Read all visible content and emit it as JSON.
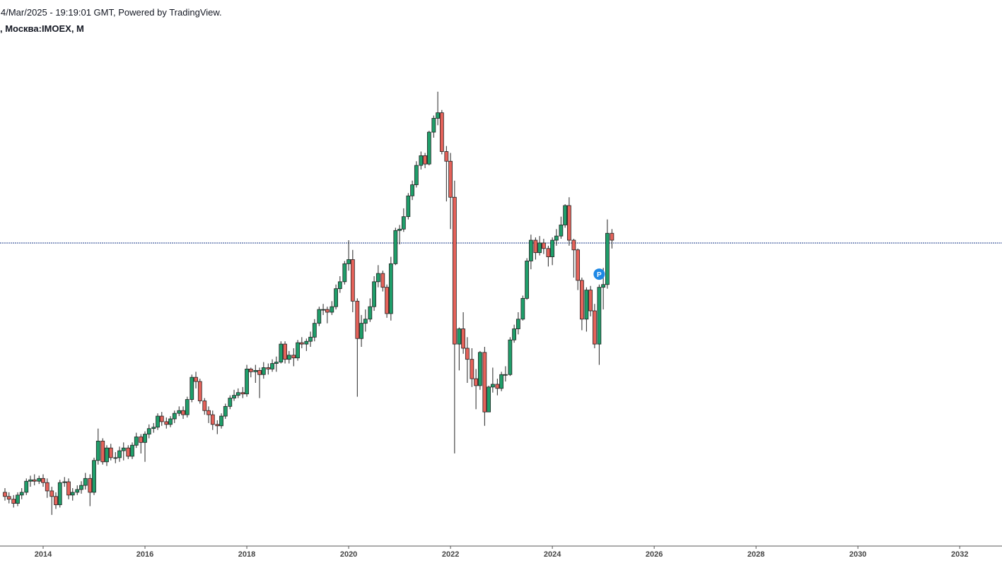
{
  "chart_data": {
    "type": "candlestick",
    "title": "4/Mar/2025 - 19:19:01 GMT, Powered by TradingView.",
    "subtitle": ", Москва:IMOEX, M",
    "x": [
      2013.25,
      2013.33,
      2013.42,
      2013.5,
      2013.58,
      2013.67,
      2013.75,
      2013.83,
      2013.92,
      2014.0,
      2014.08,
      2014.17,
      2014.25,
      2014.33,
      2014.42,
      2014.5,
      2014.58,
      2014.67,
      2014.75,
      2014.83,
      2014.92,
      2015.0,
      2015.08,
      2015.17,
      2015.25,
      2015.33,
      2015.42,
      2015.5,
      2015.58,
      2015.67,
      2015.75,
      2015.83,
      2015.92,
      2016.0,
      2016.08,
      2016.17,
      2016.25,
      2016.33,
      2016.42,
      2016.5,
      2016.58,
      2016.67,
      2016.75,
      2016.83,
      2016.92,
      2017.0,
      2017.08,
      2017.17,
      2017.25,
      2017.33,
      2017.42,
      2017.5,
      2017.58,
      2017.67,
      2017.75,
      2017.83,
      2017.92,
      2018.0,
      2018.08,
      2018.17,
      2018.25,
      2018.33,
      2018.42,
      2018.5,
      2018.58,
      2018.67,
      2018.75,
      2018.83,
      2018.92,
      2019.0,
      2019.08,
      2019.17,
      2019.25,
      2019.33,
      2019.42,
      2019.5,
      2019.58,
      2019.67,
      2019.75,
      2019.83,
      2019.92,
      2020.0,
      2020.08,
      2020.17,
      2020.25,
      2020.33,
      2020.42,
      2020.5,
      2020.58,
      2020.67,
      2020.75,
      2020.83,
      2020.92,
      2021.0,
      2021.08,
      2021.17,
      2021.25,
      2021.33,
      2021.42,
      2021.5,
      2021.58,
      2021.67,
      2021.75,
      2021.83,
      2021.92,
      2022.0,
      2022.08,
      2022.17,
      2022.25,
      2022.33,
      2022.42,
      2022.5,
      2022.58,
      2022.67,
      2022.75,
      2022.83,
      2022.92,
      2023.0,
      2023.08,
      2023.17,
      2023.25,
      2023.33,
      2023.42,
      2023.5,
      2023.58,
      2023.67,
      2023.75,
      2023.83,
      2023.92,
      2024.0,
      2024.08,
      2024.17,
      2024.25,
      2024.33,
      2024.42,
      2024.5,
      2024.58,
      2024.67,
      2024.75,
      2024.83,
      2024.92,
      2025.0,
      2025.08,
      2025.17
    ],
    "open": [
      1400,
      1370,
      1350,
      1320,
      1380,
      1400,
      1480,
      1490,
      1480,
      1500,
      1470,
      1410,
      1370,
      1310,
      1470,
      1476,
      1380,
      1400,
      1420,
      1450,
      1500,
      1400,
      1630,
      1770,
      1620,
      1720,
      1650,
      1650,
      1700,
      1720,
      1660,
      1740,
      1800,
      1760,
      1820,
      1860,
      1870,
      1950,
      1910,
      1890,
      1930,
      1970,
      1990,
      1960,
      2070,
      2230,
      2200,
      2060,
      1990,
      1960,
      1890,
      1880,
      1950,
      2020,
      2080,
      2100,
      2120,
      2110,
      2290,
      2270,
      2280,
      2250,
      2300,
      2290,
      2330,
      2340,
      2470,
      2360,
      2390,
      2370,
      2480,
      2470,
      2490,
      2520,
      2620,
      2720,
      2720,
      2700,
      2740,
      2870,
      2920,
      3050,
      3080,
      2780,
      2510,
      2620,
      2650,
      2740,
      2920,
      2980,
      2880,
      2690,
      3050,
      3290,
      3300,
      3390,
      3540,
      3620,
      3760,
      3830,
      3770,
      4000,
      4100,
      4140,
      3860,
      3790,
      3530,
      2470,
      2580,
      2440,
      2360,
      2220,
      2170,
      2410,
      1980,
      2160,
      2180,
      2150,
      2250,
      2250,
      2500,
      2580,
      2650,
      2800,
      3070,
      3220,
      3130,
      3200,
      3160,
      3100,
      3220,
      3250,
      3330,
      3470,
      3220,
      3150,
      2930,
      2650,
      2860,
      2710,
      2470,
      2880,
      2900,
      3270
    ],
    "high": [
      1430,
      1400,
      1380,
      1400,
      1430,
      1500,
      1520,
      1530,
      1520,
      1530,
      1500,
      1440,
      1400,
      1490,
      1510,
      1500,
      1430,
      1450,
      1480,
      1540,
      1530,
      1650,
      1860,
      1790,
      1740,
      1750,
      1690,
      1730,
      1760,
      1740,
      1760,
      1830,
      1820,
      1840,
      1890,
      1900,
      1970,
      1980,
      1940,
      1950,
      1990,
      2020,
      2020,
      2090,
      2250,
      2270,
      2220,
      2080,
      2020,
      1990,
      1920,
      1970,
      2040,
      2100,
      2140,
      2150,
      2160,
      2320,
      2300,
      2320,
      2300,
      2340,
      2330,
      2360,
      2380,
      2490,
      2490,
      2420,
      2440,
      2500,
      2520,
      2510,
      2560,
      2650,
      2740,
      2760,
      2740,
      2780,
      2900,
      2960,
      3070,
      3220,
      3150,
      2800,
      2680,
      2720,
      2800,
      2960,
      3040,
      3000,
      2900,
      3100,
      3310,
      3330,
      3450,
      3560,
      3650,
      3790,
      3860,
      3850,
      4010,
      4120,
      4292,
      4160,
      3900,
      3850,
      3650,
      2590,
      2700,
      2520,
      2440,
      2290,
      2420,
      2450,
      2170,
      2300,
      2220,
      2270,
      2310,
      2520,
      2610,
      2700,
      2820,
      3090,
      3260,
      3240,
      3250,
      3230,
      3180,
      3240,
      3300,
      3390,
      3480,
      3530,
      3230,
      3160,
      2950,
      2880,
      2890,
      2760,
      2900,
      3020,
      3370,
      3300
    ],
    "low": [
      1340,
      1320,
      1290,
      1300,
      1350,
      1380,
      1440,
      1450,
      1460,
      1440,
      1360,
      1237,
      1280,
      1290,
      1440,
      1350,
      1340,
      1380,
      1390,
      1420,
      1300,
      1380,
      1600,
      1600,
      1590,
      1630,
      1610,
      1620,
      1630,
      1640,
      1640,
      1720,
      1680,
      1620,
      1790,
      1830,
      1850,
      1880,
      1860,
      1870,
      1900,
      1950,
      1930,
      1940,
      2050,
      2150,
      2040,
      1960,
      1900,
      1850,
      1820,
      1860,
      1930,
      2000,
      2060,
      2080,
      2080,
      2090,
      2230,
      2190,
      2080,
      2220,
      2250,
      2270,
      2270,
      2330,
      2330,
      2330,
      2310,
      2350,
      2440,
      2420,
      2450,
      2490,
      2600,
      2680,
      2620,
      2680,
      2720,
      2840,
      2900,
      3000,
      2700,
      2090,
      2450,
      2560,
      2630,
      2710,
      2880,
      2850,
      2660,
      2640,
      3040,
      3190,
      3280,
      3370,
      3510,
      3600,
      3730,
      3740,
      3760,
      3960,
      4050,
      3840,
      3500,
      3300,
      1681,
      2280,
      2400,
      2190,
      2160,
      2000,
      2140,
      1880,
      1990,
      2120,
      2100,
      2130,
      2200,
      2240,
      2480,
      2540,
      2640,
      2790,
      3010,
      3080,
      3110,
      3120,
      3030,
      3040,
      3180,
      3230,
      3310,
      3180,
      2950,
      2860,
      2570,
      2560,
      2670,
      2440,
      2320,
      2720,
      2870,
      3160
    ],
    "close": [
      1370,
      1350,
      1320,
      1380,
      1400,
      1480,
      1490,
      1480,
      1500,
      1470,
      1410,
      1370,
      1310,
      1470,
      1476,
      1380,
      1400,
      1420,
      1450,
      1500,
      1400,
      1630,
      1770,
      1620,
      1720,
      1650,
      1650,
      1700,
      1720,
      1660,
      1740,
      1800,
      1760,
      1820,
      1860,
      1870,
      1950,
      1910,
      1890,
      1930,
      1970,
      1990,
      1960,
      2070,
      2230,
      2200,
      2060,
      1990,
      1960,
      1890,
      1880,
      1950,
      2020,
      2080,
      2100,
      2120,
      2110,
      2290,
      2270,
      2280,
      2250,
      2300,
      2290,
      2330,
      2340,
      2470,
      2360,
      2390,
      2370,
      2480,
      2470,
      2490,
      2520,
      2620,
      2720,
      2720,
      2700,
      2740,
      2870,
      2920,
      3050,
      3080,
      2780,
      2510,
      2620,
      2650,
      2740,
      2920,
      2980,
      2880,
      2690,
      3050,
      3290,
      3300,
      3390,
      3540,
      3620,
      3760,
      3830,
      3770,
      4000,
      4100,
      4140,
      3860,
      3790,
      3530,
      2470,
      2580,
      2440,
      2360,
      2220,
      2170,
      2410,
      1980,
      2160,
      2180,
      2150,
      2250,
      2250,
      2500,
      2580,
      2650,
      2800,
      3070,
      3220,
      3130,
      3200,
      3160,
      3100,
      3220,
      3250,
      3330,
      3470,
      3220,
      3150,
      2930,
      2650,
      2860,
      2710,
      2470,
      2880,
      2900,
      3270,
      3220
    ],
    "up_color": "#1f9e6a",
    "down_color": "#e5625a",
    "xlim": [
      2013.153,
      2032.83
    ],
    "xticks": [
      2014,
      2016,
      2018,
      2020,
      2022,
      2024,
      2026,
      2028,
      2030,
      2032
    ],
    "ylim": [
      1012,
      4954
    ],
    "price_line": 3200,
    "price_line_color": "#1a3a8a",
    "marker": {
      "label": "P",
      "x": 2024.92,
      "y": 2975,
      "color": "#1e88e5"
    }
  }
}
